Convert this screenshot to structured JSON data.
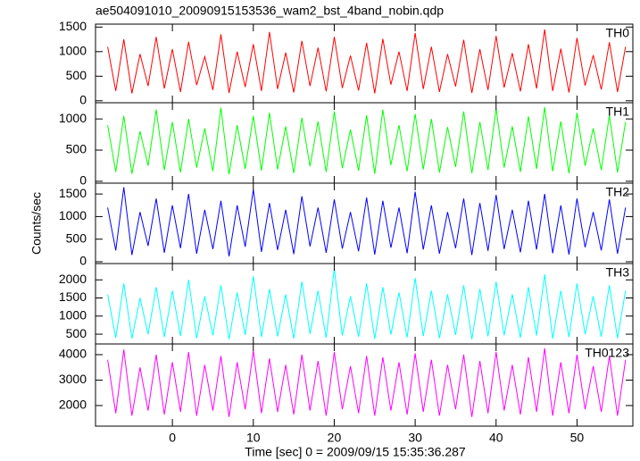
{
  "title": "ae504091010_20090915153536_wam2_bst_4band_nobin.qdp",
  "ylabel": "Counts/sec",
  "chart_data": [
    {
      "type": "line",
      "label": "TH0",
      "color": "#ff0000",
      "x": [
        -8,
        -7,
        -6,
        -5,
        -4,
        -3,
        -2,
        -1,
        0,
        1,
        2,
        3,
        4,
        5,
        6,
        7,
        8,
        9,
        10,
        11,
        12,
        13,
        14,
        15,
        16,
        17,
        18,
        19,
        20,
        21,
        22,
        23,
        24,
        25,
        26,
        27,
        28,
        29,
        30,
        31,
        32,
        33,
        34,
        35,
        36,
        37,
        38,
        39,
        40,
        41,
        42,
        43,
        44,
        45,
        46,
        47,
        48,
        49,
        50,
        51,
        52,
        53,
        54,
        55,
        56
      ],
      "values": [
        1100,
        200,
        1250,
        150,
        950,
        300,
        1300,
        250,
        1050,
        180,
        1200,
        320,
        900,
        220,
        1350,
        160,
        1000,
        280,
        1150,
        200,
        1400,
        240,
        980,
        170,
        1220,
        300,
        1080,
        190,
        1300,
        260,
        920,
        210,
        1180,
        150,
        1260,
        330,
        1000,
        200,
        1380,
        240,
        1100,
        180,
        950,
        290,
        1240,
        160,
        1050,
        220,
        1320,
        270,
        970,
        190,
        1150,
        250,
        1450,
        200,
        1060,
        170,
        1280,
        310,
        930,
        230,
        1190,
        180,
        1100
      ],
      "xlim": [
        -9.5,
        56.9
      ],
      "ylim": [
        -40,
        1560
      ],
      "yticks": [
        0,
        500,
        1000,
        1500
      ]
    },
    {
      "type": "line",
      "label": "TH1",
      "color": "#00ff00",
      "x": [
        -8,
        -7,
        -6,
        -5,
        -4,
        -3,
        -2,
        -1,
        0,
        1,
        2,
        3,
        4,
        5,
        6,
        7,
        8,
        9,
        10,
        11,
        12,
        13,
        14,
        15,
        16,
        17,
        18,
        19,
        20,
        21,
        22,
        23,
        24,
        25,
        26,
        27,
        28,
        29,
        30,
        31,
        32,
        33,
        34,
        35,
        36,
        37,
        38,
        39,
        40,
        41,
        42,
        43,
        44,
        45,
        46,
        47,
        48,
        49,
        50,
        51,
        52,
        53,
        54,
        55,
        56
      ],
      "values": [
        900,
        150,
        1050,
        120,
        800,
        250,
        1150,
        180,
        950,
        140,
        1000,
        220,
        850,
        160,
        1180,
        110,
        900,
        200,
        1050,
        170,
        1100,
        190,
        880,
        130,
        1020,
        240,
        960,
        150,
        1120,
        210,
        830,
        170,
        1060,
        120,
        1150,
        260,
        900,
        160,
        1080,
        190,
        1000,
        140,
        870,
        230,
        1120,
        130,
        950,
        180,
        1170,
        220,
        880,
        150,
        1040,
        200,
        1190,
        160,
        960,
        130,
        1100,
        250,
        850,
        180,
        1060,
        140,
        950
      ],
      "xlim": [
        -9.5,
        56.9
      ],
      "ylim": [
        -30,
        1260
      ],
      "yticks": [
        0,
        500,
        1000
      ]
    },
    {
      "type": "line",
      "label": "TH2",
      "color": "#0000ff",
      "x": [
        -8,
        -7,
        -6,
        -5,
        -4,
        -3,
        -2,
        -1,
        0,
        1,
        2,
        3,
        4,
        5,
        6,
        7,
        8,
        9,
        10,
        11,
        12,
        13,
        14,
        15,
        16,
        17,
        18,
        19,
        20,
        21,
        22,
        23,
        24,
        25,
        26,
        27,
        28,
        29,
        30,
        31,
        32,
        33,
        34,
        35,
        36,
        37,
        38,
        39,
        40,
        41,
        42,
        43,
        44,
        45,
        46,
        47,
        48,
        49,
        50,
        51,
        52,
        53,
        54,
        55,
        56
      ],
      "values": [
        1200,
        250,
        1650,
        150,
        1100,
        350,
        1400,
        200,
        1250,
        300,
        1500,
        180,
        1150,
        280,
        1350,
        120,
        1250,
        330,
        1600,
        220,
        1300,
        260,
        1150,
        170,
        1450,
        340,
        1200,
        200,
        1380,
        290,
        1100,
        230,
        1420,
        160,
        1350,
        310,
        1200,
        190,
        1550,
        270,
        1250,
        180,
        1100,
        300,
        1400,
        150,
        1300,
        240,
        1480,
        280,
        1150,
        210,
        1350,
        270,
        1500,
        190,
        1250,
        160,
        1400,
        320,
        1100,
        250,
        1380,
        180,
        1200
      ],
      "xlim": [
        -9.5,
        56.9
      ],
      "ylim": [
        -40,
        1740
      ],
      "yticks": [
        0,
        500,
        1000,
        1500
      ]
    },
    {
      "type": "line",
      "label": "TH3",
      "color": "#00ffff",
      "x": [
        -8,
        -7,
        -6,
        -5,
        -4,
        -3,
        -2,
        -1,
        0,
        1,
        2,
        3,
        4,
        5,
        6,
        7,
        8,
        9,
        10,
        11,
        12,
        13,
        14,
        15,
        16,
        17,
        18,
        19,
        20,
        21,
        22,
        23,
        24,
        25,
        26,
        27,
        28,
        29,
        30,
        31,
        32,
        33,
        34,
        35,
        36,
        37,
        38,
        39,
        40,
        41,
        42,
        43,
        44,
        45,
        46,
        47,
        48,
        49,
        50,
        51,
        52,
        53,
        54,
        55,
        56
      ],
      "values": [
        1600,
        400,
        1900,
        380,
        1500,
        500,
        1800,
        420,
        1700,
        450,
        2000,
        390,
        1550,
        470,
        1850,
        360,
        1650,
        480,
        2100,
        420,
        1750,
        440,
        1600,
        380,
        1950,
        510,
        1700,
        400,
        2300,
        460,
        1550,
        430,
        1900,
        370,
        1800,
        490,
        1650,
        410,
        2050,
        450,
        1700,
        390,
        1600,
        480,
        1850,
        360,
        1750,
        440,
        1950,
        470,
        1600,
        400,
        1800,
        460,
        2150,
        380,
        1700,
        420,
        1900,
        500,
        1550,
        430,
        1850,
        390,
        1700
      ],
      "xlim": [
        -9.5,
        56.9
      ],
      "ylim": [
        230,
        2450
      ],
      "yticks": [
        500,
        1000,
        1500,
        2000
      ]
    },
    {
      "type": "line",
      "label": "TH0123",
      "color": "#ff00ff",
      "x": [
        -8,
        -7,
        -6,
        -5,
        -4,
        -3,
        -2,
        -1,
        0,
        1,
        2,
        3,
        4,
        5,
        6,
        7,
        8,
        9,
        10,
        11,
        12,
        13,
        14,
        15,
        16,
        17,
        18,
        19,
        20,
        21,
        22,
        23,
        24,
        25,
        26,
        27,
        28,
        29,
        30,
        31,
        32,
        33,
        34,
        35,
        36,
        37,
        38,
        39,
        40,
        41,
        42,
        43,
        44,
        45,
        46,
        47,
        48,
        49,
        50,
        51,
        52,
        53,
        54,
        55,
        56
      ],
      "values": [
        3800,
        1700,
        4200,
        1600,
        3500,
        1800,
        4000,
        1650,
        3700,
        1750,
        4100,
        1600,
        3600,
        1800,
        3950,
        1550,
        3700,
        1850,
        4150,
        1700,
        3850,
        1750,
        3600,
        1650,
        4000,
        1800,
        3750,
        1600,
        4100,
        1850,
        3550,
        1700,
        3950,
        1600,
        3900,
        1800,
        3700,
        1650,
        4050,
        1750,
        3800,
        1600,
        3600,
        1850,
        4000,
        1550,
        3750,
        1700,
        4100,
        1800,
        3600,
        1650,
        3900,
        1750,
        4250,
        1600,
        3700,
        1700,
        4000,
        1850,
        3550,
        1750,
        3950,
        1600,
        3800
      ],
      "xlim": [
        -9.5,
        56.9
      ],
      "ylim": [
        1190,
        4420
      ],
      "yticks": [
        2000,
        3000,
        4000
      ],
      "xticks": [
        0,
        10,
        20,
        30,
        40,
        50
      ],
      "xlabel": "Time [sec] 0 = 2009/09/15 15:35:36.287"
    }
  ]
}
